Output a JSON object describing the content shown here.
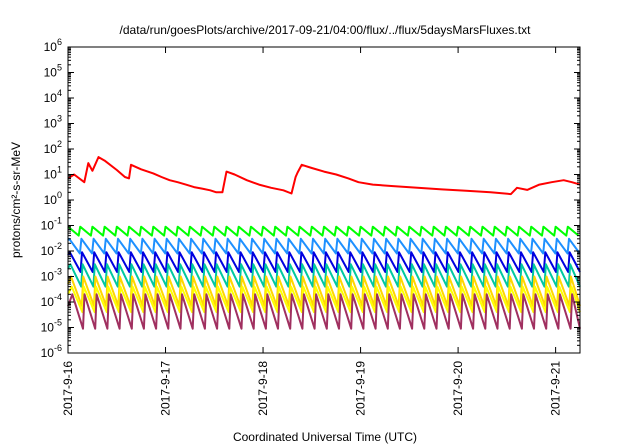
{
  "chart_data": {
    "type": "line",
    "title": "/data/run/goesPlots/archive/2017-09-21/04:00/flux/../flux/5daysMarsFluxes.txt",
    "xlabel": "Coordinated Universal Time (UTC)",
    "ylabel": "protons/cm²-s-sr-MeV",
    "y_scale": "log",
    "ylim": [
      1e-06,
      1000000.0
    ],
    "y_tick_labels": [
      "10-6",
      "10-5",
      "10-4",
      "10-3",
      "10-2",
      "10-1",
      "100",
      "101",
      "102",
      "103",
      "104",
      "105",
      "106"
    ],
    "x_tick_labels": [
      "2017-9-16",
      "2017-9-17",
      "2017-9-18",
      "2017-9-19",
      "2017-9-20",
      "2017-9-21"
    ],
    "xlim": [
      "2017-09-16T00:00",
      "2017-09-21T06:00"
    ],
    "grid": false,
    "legend": "none",
    "series": [
      {
        "color": "#ff0000",
        "points": [
          [
            "2017-09-16T00:00",
            7
          ],
          [
            "2017-09-16T01:30",
            10
          ],
          [
            "2017-09-16T04:00",
            5
          ],
          [
            "2017-09-16T05:00",
            28
          ],
          [
            "2017-09-16T06:00",
            14
          ],
          [
            "2017-09-16T07:30",
            48
          ],
          [
            "2017-09-16T09:00",
            35
          ],
          [
            "2017-09-16T12:00",
            15
          ],
          [
            "2017-09-16T14:00",
            8
          ],
          [
            "2017-09-16T15:00",
            7
          ],
          [
            "2017-09-16T15:30",
            24
          ],
          [
            "2017-09-16T18:00",
            16
          ],
          [
            "2017-09-16T21:00",
            11
          ],
          [
            "2017-09-16T23:00",
            8
          ],
          [
            "2017-09-17T01:00",
            6
          ],
          [
            "2017-09-17T03:00",
            5
          ],
          [
            "2017-09-17T05:00",
            4
          ],
          [
            "2017-09-17T07:00",
            3.2
          ],
          [
            "2017-09-17T09:00",
            2.8
          ],
          [
            "2017-09-17T11:00",
            2.4
          ],
          [
            "2017-09-17T12:30",
            2
          ],
          [
            "2017-09-17T14:00",
            2
          ],
          [
            "2017-09-17T15:00",
            13
          ],
          [
            "2017-09-17T17:00",
            10
          ],
          [
            "2017-09-17T20:00",
            6
          ],
          [
            "2017-09-17T23:00",
            4
          ],
          [
            "2017-09-18T02:00",
            3
          ],
          [
            "2017-09-18T05:00",
            2.4
          ],
          [
            "2017-09-18T07:00",
            1.8
          ],
          [
            "2017-09-18T08:00",
            8
          ],
          [
            "2017-09-18T08:30",
            12
          ],
          [
            "2017-09-18T09:30",
            24
          ],
          [
            "2017-09-18T12:00",
            18
          ],
          [
            "2017-09-18T15:00",
            13
          ],
          [
            "2017-09-18T18:00",
            10
          ],
          [
            "2017-09-18T21:00",
            7
          ],
          [
            "2017-09-18T23:30",
            5
          ],
          [
            "2017-09-19T03:00",
            4
          ],
          [
            "2017-09-19T08:00",
            3.5
          ],
          [
            "2017-09-19T14:00",
            3
          ],
          [
            "2017-09-19T20:00",
            2.6
          ],
          [
            "2017-09-20T02:00",
            2.3
          ],
          [
            "2017-09-20T08:00",
            2
          ],
          [
            "2017-09-20T13:00",
            1.7
          ],
          [
            "2017-09-20T14:30",
            3
          ],
          [
            "2017-09-20T17:00",
            2.5
          ],
          [
            "2017-09-20T20:00",
            4
          ],
          [
            "2017-09-20T23:00",
            5
          ],
          [
            "2017-09-21T02:00",
            6
          ],
          [
            "2017-09-21T04:00",
            5
          ],
          [
            "2017-09-21T06:00",
            4
          ]
        ]
      },
      {
        "color": "#00ff00",
        "top": 0.09,
        "bottom": 0.04,
        "phase": 0.0
      },
      {
        "color": "#1e90ff",
        "top": 0.03,
        "bottom": 0.008,
        "phase": 0.1
      },
      {
        "color": "#0000e0",
        "top": 0.009,
        "bottom": 0.0015,
        "phase": 0.15
      },
      {
        "color": "#00c8a0",
        "top": 0.003,
        "bottom": 0.0004,
        "phase": 0.2
      },
      {
        "color": "#ffd700",
        "top": 0.001,
        "bottom": 7e-05,
        "phase": 0.25
      },
      {
        "color": "#ffff00",
        "top": 0.0004,
        "bottom": 4e-05,
        "phase": 0.3
      },
      {
        "color": "#a03060",
        "top": 0.0002,
        "bottom": 9e-06,
        "phase": 0.35
      }
    ],
    "sawtooth_period_hours": 3
  }
}
